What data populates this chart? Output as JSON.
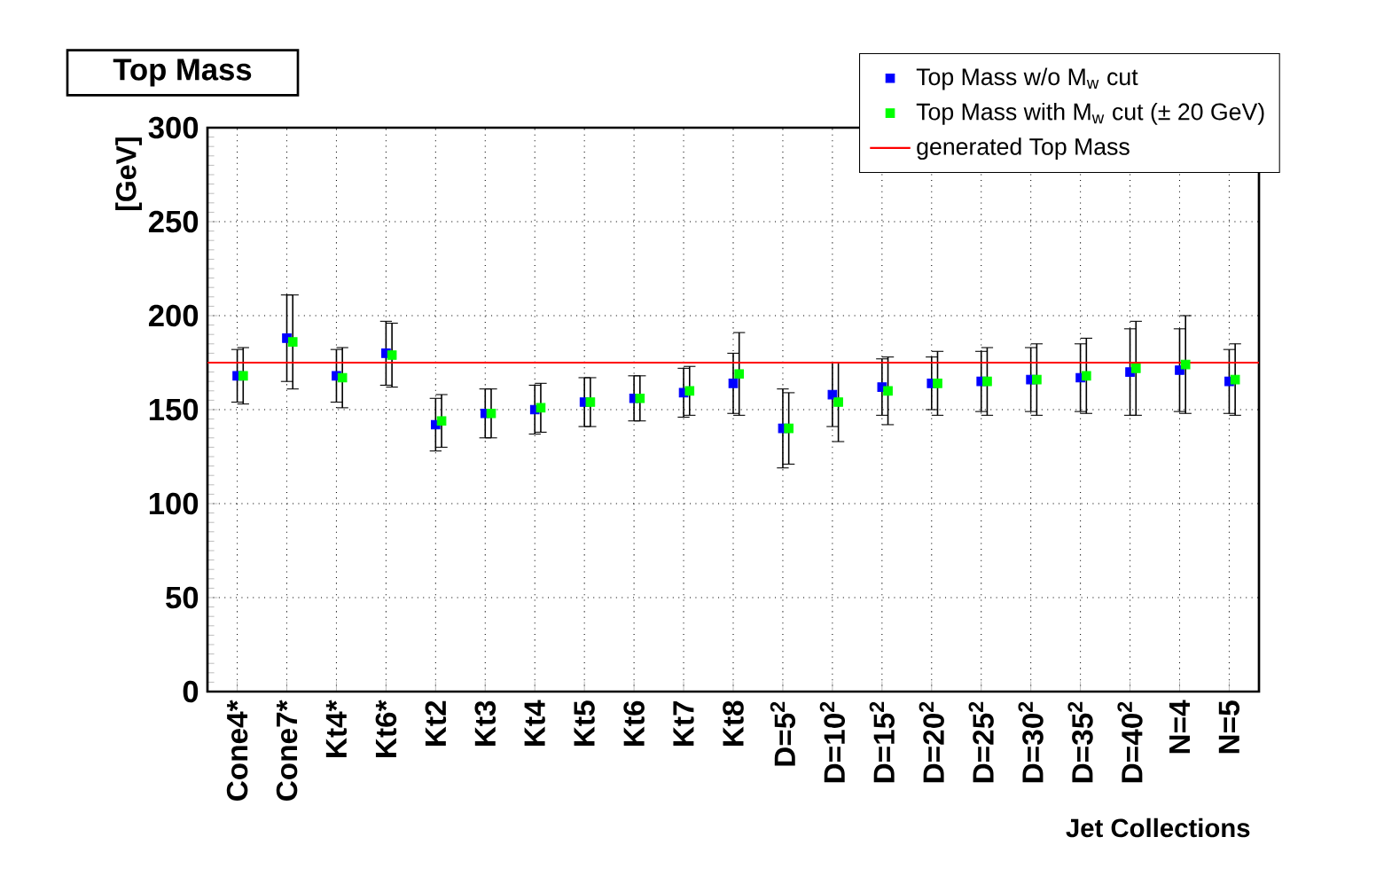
{
  "chart_data": {
    "type": "scatter",
    "title": "Top Mass",
    "xlabel": "Jet Collections",
    "ylabel": "[GeV]",
    "categories": [
      "Cone4*",
      "Cone7*",
      "Kt4*",
      "Kt6*",
      "Kt2",
      "Kt3",
      "Kt4",
      "Kt5",
      "Kt6",
      "Kt7",
      "Kt8",
      "D=5$^{2}$",
      "D=10$^{2}$",
      "D=15$^{2}$",
      "D=20$^{2}$",
      "D=25$^{2}$",
      "D=30$^{2}$",
      "D=35$^{2}$",
      "D=40$^{2}$",
      "N=4",
      "N=5"
    ],
    "series": [
      {
        "name": "Top Mass w/o M$_{w}$ cut",
        "color": "#0000ff",
        "values": [
          168,
          188,
          168,
          180,
          142,
          148,
          150,
          154,
          156,
          159,
          164,
          140,
          158,
          162,
          164,
          165,
          166,
          167,
          170,
          171,
          165
        ],
        "errors": [
          14,
          23,
          14,
          17,
          14,
          13,
          13,
          13,
          12,
          13,
          16,
          21,
          17,
          15,
          14,
          16,
          17,
          18,
          23,
          22,
          17
        ]
      },
      {
        "name": "Top Mass with M$_{w}$ cut (± 20 GeV)",
        "color": "#00ff00",
        "values": [
          168,
          186,
          167,
          179,
          144,
          148,
          151,
          154,
          156,
          160,
          169,
          140,
          154,
          160,
          164,
          165,
          166,
          168,
          172,
          174,
          166
        ],
        "errors": [
          15,
          25,
          16,
          17,
          14,
          13,
          13,
          13,
          12,
          13,
          22,
          19,
          21,
          18,
          17,
          18,
          19,
          20,
          25,
          26,
          19
        ]
      }
    ],
    "ref_lines": [
      {
        "axis": "y",
        "value": 175,
        "label": "generated Top Mass",
        "color": "#ff0000"
      }
    ],
    "ylim": [
      0,
      300
    ],
    "yticks": [
      0,
      50,
      100,
      150,
      200,
      250,
      300
    ],
    "grid": true,
    "legend": "top right",
    "marker": "square"
  }
}
